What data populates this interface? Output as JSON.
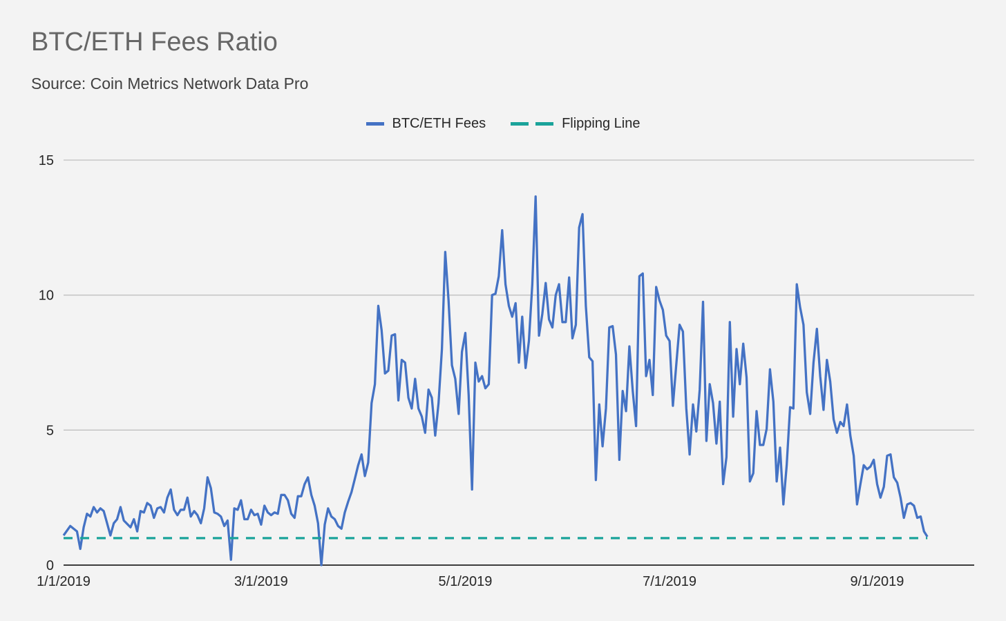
{
  "chart_data": {
    "type": "line",
    "title": "BTC/ETH Fees Ratio",
    "subtitle": "Source: Coin Metrics Network Data Pro",
    "xlabel": "",
    "ylabel": "",
    "ylim": [
      0,
      15
    ],
    "yticks": [
      0,
      5,
      10,
      15
    ],
    "xlim": [
      "2019-01-01",
      "2019-09-30"
    ],
    "xticks": [
      {
        "date": "2019-01-01",
        "label": "1/1/2019"
      },
      {
        "date": "2019-03-01",
        "label": "3/1/2019"
      },
      {
        "date": "2019-05-01",
        "label": "5/1/2019"
      },
      {
        "date": "2019-07-01",
        "label": "7/1/2019"
      },
      {
        "date": "2019-09-01",
        "label": "9/1/2019"
      }
    ],
    "grid": true,
    "legend_position": "top-center",
    "series": [
      {
        "name": "BTC/ETH Fees",
        "color": "#4472c4",
        "style": "solid",
        "points": [
          [
            "2019-01-01",
            1.1
          ],
          [
            "2019-01-03",
            1.45
          ],
          [
            "2019-01-05",
            1.25
          ],
          [
            "2019-01-06",
            0.6
          ],
          [
            "2019-01-07",
            1.4
          ],
          [
            "2019-01-08",
            1.9
          ],
          [
            "2019-01-09",
            1.8
          ],
          [
            "2019-01-10",
            2.15
          ],
          [
            "2019-01-11",
            1.95
          ],
          [
            "2019-01-12",
            2.1
          ],
          [
            "2019-01-13",
            2.0
          ],
          [
            "2019-01-14",
            1.55
          ],
          [
            "2019-01-15",
            1.1
          ],
          [
            "2019-01-16",
            1.55
          ],
          [
            "2019-01-17",
            1.7
          ],
          [
            "2019-01-18",
            2.15
          ],
          [
            "2019-01-19",
            1.65
          ],
          [
            "2019-01-21",
            1.4
          ],
          [
            "2019-01-22",
            1.7
          ],
          [
            "2019-01-23",
            1.25
          ],
          [
            "2019-01-24",
            2.0
          ],
          [
            "2019-01-25",
            1.95
          ],
          [
            "2019-01-26",
            2.3
          ],
          [
            "2019-01-27",
            2.2
          ],
          [
            "2019-01-28",
            1.75
          ],
          [
            "2019-01-29",
            2.1
          ],
          [
            "2019-01-30",
            2.15
          ],
          [
            "2019-01-31",
            1.95
          ],
          [
            "2019-02-01",
            2.5
          ],
          [
            "2019-02-02",
            2.8
          ],
          [
            "2019-02-03",
            2.05
          ],
          [
            "2019-02-04",
            1.85
          ],
          [
            "2019-02-05",
            2.05
          ],
          [
            "2019-02-06",
            2.05
          ],
          [
            "2019-02-07",
            2.5
          ],
          [
            "2019-02-08",
            1.8
          ],
          [
            "2019-02-09",
            2.0
          ],
          [
            "2019-02-10",
            1.85
          ],
          [
            "2019-02-11",
            1.55
          ],
          [
            "2019-02-12",
            2.1
          ],
          [
            "2019-02-13",
            3.25
          ],
          [
            "2019-02-14",
            2.85
          ],
          [
            "2019-02-15",
            1.95
          ],
          [
            "2019-02-16",
            1.9
          ],
          [
            "2019-02-17",
            1.8
          ],
          [
            "2019-02-18",
            1.45
          ],
          [
            "2019-02-19",
            1.65
          ],
          [
            "2019-02-20",
            0.2
          ],
          [
            "2019-02-21",
            2.1
          ],
          [
            "2019-02-22",
            2.05
          ],
          [
            "2019-02-23",
            2.4
          ],
          [
            "2019-02-24",
            1.7
          ],
          [
            "2019-02-25",
            1.7
          ],
          [
            "2019-02-26",
            2.05
          ],
          [
            "2019-02-27",
            1.85
          ],
          [
            "2019-02-28",
            1.9
          ],
          [
            "2019-03-01",
            1.5
          ],
          [
            "2019-03-02",
            2.2
          ],
          [
            "2019-03-03",
            1.95
          ],
          [
            "2019-03-04",
            1.85
          ],
          [
            "2019-03-05",
            1.95
          ],
          [
            "2019-03-06",
            1.9
          ],
          [
            "2019-03-07",
            2.6
          ],
          [
            "2019-03-08",
            2.6
          ],
          [
            "2019-03-09",
            2.4
          ],
          [
            "2019-03-10",
            1.9
          ],
          [
            "2019-03-11",
            1.75
          ],
          [
            "2019-03-12",
            2.55
          ],
          [
            "2019-03-13",
            2.55
          ],
          [
            "2019-03-14",
            3.0
          ],
          [
            "2019-03-15",
            3.25
          ],
          [
            "2019-03-16",
            2.6
          ],
          [
            "2019-03-17",
            2.2
          ],
          [
            "2019-03-18",
            1.55
          ],
          [
            "2019-03-19",
            0.0
          ],
          [
            "2019-03-20",
            1.5
          ],
          [
            "2019-03-21",
            2.1
          ],
          [
            "2019-03-22",
            1.8
          ],
          [
            "2019-03-23",
            1.7
          ],
          [
            "2019-03-24",
            1.45
          ],
          [
            "2019-03-25",
            1.35
          ],
          [
            "2019-03-26",
            1.95
          ],
          [
            "2019-03-27",
            2.35
          ],
          [
            "2019-03-28",
            2.7
          ],
          [
            "2019-03-29",
            3.2
          ],
          [
            "2019-03-30",
            3.7
          ],
          [
            "2019-03-31",
            4.1
          ],
          [
            "2019-04-01",
            3.3
          ],
          [
            "2019-04-02",
            3.8
          ],
          [
            "2019-04-03",
            6.0
          ],
          [
            "2019-04-04",
            6.7
          ],
          [
            "2019-04-05",
            9.6
          ],
          [
            "2019-04-06",
            8.7
          ],
          [
            "2019-04-07",
            7.1
          ],
          [
            "2019-04-08",
            7.2
          ],
          [
            "2019-04-09",
            8.5
          ],
          [
            "2019-04-10",
            8.55
          ],
          [
            "2019-04-11",
            6.1
          ],
          [
            "2019-04-12",
            7.6
          ],
          [
            "2019-04-13",
            7.5
          ],
          [
            "2019-04-14",
            6.2
          ],
          [
            "2019-04-15",
            5.8
          ],
          [
            "2019-04-16",
            6.9
          ],
          [
            "2019-04-17",
            5.8
          ],
          [
            "2019-04-18",
            5.5
          ],
          [
            "2019-04-19",
            4.9
          ],
          [
            "2019-04-20",
            6.5
          ],
          [
            "2019-04-21",
            6.2
          ],
          [
            "2019-04-22",
            4.8
          ],
          [
            "2019-04-23",
            6.0
          ],
          [
            "2019-04-24",
            8.0
          ],
          [
            "2019-04-25",
            11.6
          ],
          [
            "2019-04-26",
            9.8
          ],
          [
            "2019-04-27",
            7.4
          ],
          [
            "2019-04-28",
            6.9
          ],
          [
            "2019-04-29",
            5.6
          ],
          [
            "2019-04-30",
            7.9
          ],
          [
            "2019-05-01",
            8.6
          ],
          [
            "2019-05-02",
            6.3
          ],
          [
            "2019-05-03",
            2.8
          ],
          [
            "2019-05-04",
            7.5
          ],
          [
            "2019-05-05",
            6.8
          ],
          [
            "2019-05-06",
            7.0
          ],
          [
            "2019-05-07",
            6.55
          ],
          [
            "2019-05-08",
            6.7
          ],
          [
            "2019-05-09",
            10.0
          ],
          [
            "2019-05-10",
            10.05
          ],
          [
            "2019-05-11",
            10.7
          ],
          [
            "2019-05-12",
            12.4
          ],
          [
            "2019-05-13",
            10.4
          ],
          [
            "2019-05-14",
            9.6
          ],
          [
            "2019-05-15",
            9.2
          ],
          [
            "2019-05-16",
            9.7
          ],
          [
            "2019-05-17",
            7.5
          ],
          [
            "2019-05-18",
            9.2
          ],
          [
            "2019-05-19",
            7.3
          ],
          [
            "2019-05-20",
            8.3
          ],
          [
            "2019-05-21",
            10.4
          ],
          [
            "2019-05-22",
            13.65
          ],
          [
            "2019-05-23",
            8.5
          ],
          [
            "2019-05-24",
            9.3
          ],
          [
            "2019-05-25",
            10.45
          ],
          [
            "2019-05-26",
            9.1
          ],
          [
            "2019-05-27",
            8.8
          ],
          [
            "2019-05-28",
            10.0
          ],
          [
            "2019-05-29",
            10.4
          ],
          [
            "2019-05-30",
            9.0
          ],
          [
            "2019-05-31",
            9.0
          ],
          [
            "2019-06-01",
            10.65
          ],
          [
            "2019-06-02",
            8.4
          ],
          [
            "2019-06-03",
            8.9
          ],
          [
            "2019-06-04",
            12.5
          ],
          [
            "2019-06-05",
            13.0
          ],
          [
            "2019-06-06",
            9.6
          ],
          [
            "2019-06-07",
            7.7
          ],
          [
            "2019-06-08",
            7.55
          ],
          [
            "2019-06-09",
            3.15
          ],
          [
            "2019-06-10",
            5.95
          ],
          [
            "2019-06-11",
            4.4
          ],
          [
            "2019-06-12",
            5.8
          ],
          [
            "2019-06-13",
            8.8
          ],
          [
            "2019-06-14",
            8.85
          ],
          [
            "2019-06-15",
            7.8
          ],
          [
            "2019-06-16",
            3.9
          ],
          [
            "2019-06-17",
            6.45
          ],
          [
            "2019-06-18",
            5.7
          ],
          [
            "2019-06-19",
            8.1
          ],
          [
            "2019-06-20",
            6.45
          ],
          [
            "2019-06-21",
            5.15
          ],
          [
            "2019-06-22",
            10.7
          ],
          [
            "2019-06-23",
            10.8
          ],
          [
            "2019-06-24",
            7.0
          ],
          [
            "2019-06-25",
            7.6
          ],
          [
            "2019-06-26",
            6.3
          ],
          [
            "2019-06-27",
            10.3
          ],
          [
            "2019-06-28",
            9.8
          ],
          [
            "2019-06-29",
            9.45
          ],
          [
            "2019-06-30",
            8.5
          ],
          [
            "2019-07-01",
            8.3
          ],
          [
            "2019-07-02",
            5.9
          ],
          [
            "2019-07-03",
            7.4
          ],
          [
            "2019-07-04",
            8.9
          ],
          [
            "2019-07-05",
            8.65
          ],
          [
            "2019-07-06",
            5.8
          ],
          [
            "2019-07-07",
            4.1
          ],
          [
            "2019-07-08",
            5.95
          ],
          [
            "2019-07-09",
            4.95
          ],
          [
            "2019-07-10",
            6.5
          ],
          [
            "2019-07-11",
            9.75
          ],
          [
            "2019-07-12",
            4.6
          ],
          [
            "2019-07-13",
            6.7
          ],
          [
            "2019-07-14",
            6.0
          ],
          [
            "2019-07-15",
            4.5
          ],
          [
            "2019-07-16",
            6.05
          ],
          [
            "2019-07-17",
            3.0
          ],
          [
            "2019-07-18",
            4.0
          ],
          [
            "2019-07-19",
            9.0
          ],
          [
            "2019-07-20",
            5.5
          ],
          [
            "2019-07-21",
            8.0
          ],
          [
            "2019-07-22",
            6.7
          ],
          [
            "2019-07-23",
            8.2
          ],
          [
            "2019-07-24",
            6.95
          ],
          [
            "2019-07-25",
            3.1
          ],
          [
            "2019-07-26",
            3.4
          ],
          [
            "2019-07-27",
            5.7
          ],
          [
            "2019-07-28",
            4.45
          ],
          [
            "2019-07-29",
            4.45
          ],
          [
            "2019-07-30",
            5.05
          ],
          [
            "2019-07-31",
            7.25
          ],
          [
            "2019-08-01",
            6.05
          ],
          [
            "2019-08-02",
            3.1
          ],
          [
            "2019-08-03",
            4.35
          ],
          [
            "2019-08-04",
            2.25
          ],
          [
            "2019-08-05",
            3.7
          ],
          [
            "2019-08-06",
            5.85
          ],
          [
            "2019-08-07",
            5.8
          ],
          [
            "2019-08-08",
            10.4
          ],
          [
            "2019-08-09",
            9.55
          ],
          [
            "2019-08-10",
            8.9
          ],
          [
            "2019-08-11",
            6.4
          ],
          [
            "2019-08-12",
            5.6
          ],
          [
            "2019-08-13",
            7.5
          ],
          [
            "2019-08-14",
            8.75
          ],
          [
            "2019-08-15",
            7.0
          ],
          [
            "2019-08-16",
            5.75
          ],
          [
            "2019-08-17",
            7.6
          ],
          [
            "2019-08-18",
            6.8
          ],
          [
            "2019-08-19",
            5.4
          ],
          [
            "2019-08-20",
            4.9
          ],
          [
            "2019-08-21",
            5.3
          ],
          [
            "2019-08-22",
            5.15
          ],
          [
            "2019-08-23",
            5.95
          ],
          [
            "2019-08-24",
            4.8
          ],
          [
            "2019-08-25",
            4.05
          ],
          [
            "2019-08-26",
            2.25
          ],
          [
            "2019-08-27",
            3.0
          ],
          [
            "2019-08-28",
            3.7
          ],
          [
            "2019-08-29",
            3.55
          ],
          [
            "2019-08-30",
            3.65
          ],
          [
            "2019-08-31",
            3.9
          ],
          [
            "2019-09-01",
            3.0
          ],
          [
            "2019-09-02",
            2.5
          ],
          [
            "2019-09-03",
            2.9
          ],
          [
            "2019-09-04",
            4.05
          ],
          [
            "2019-09-05",
            4.1
          ],
          [
            "2019-09-06",
            3.25
          ],
          [
            "2019-09-07",
            3.05
          ],
          [
            "2019-09-08",
            2.5
          ],
          [
            "2019-09-09",
            1.75
          ],
          [
            "2019-09-10",
            2.25
          ],
          [
            "2019-09-11",
            2.3
          ],
          [
            "2019-09-12",
            2.2
          ],
          [
            "2019-09-13",
            1.75
          ],
          [
            "2019-09-14",
            1.8
          ],
          [
            "2019-09-15",
            1.25
          ],
          [
            "2019-09-16",
            1.05
          ]
        ]
      },
      {
        "name": "Flipping Line",
        "color": "#1aa39a",
        "style": "dashed",
        "points": [
          [
            "2019-01-01",
            1
          ],
          [
            "2019-09-16",
            1
          ]
        ]
      }
    ]
  }
}
